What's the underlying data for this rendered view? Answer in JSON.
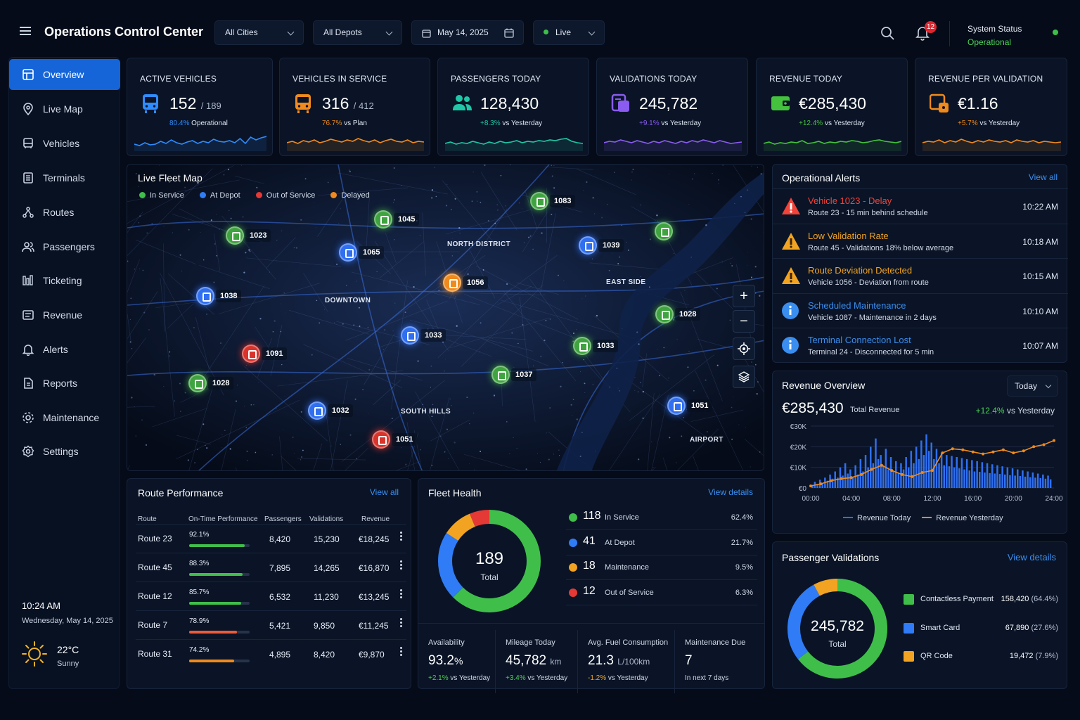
{
  "header": {
    "title": "Operations Control Center",
    "city_filter": "All Cities",
    "depot_filter": "All Depots",
    "date": "May 14, 2025",
    "mode": "Live",
    "notifications": "12",
    "status_label": "System Status",
    "status_value": "Operational"
  },
  "sidebar": {
    "items": [
      {
        "label": "Overview",
        "icon": "dashboard-icon"
      },
      {
        "label": "Live Map",
        "icon": "map-pin-icon"
      },
      {
        "label": "Vehicles",
        "icon": "bus-icon"
      },
      {
        "label": "Terminals",
        "icon": "terminal-icon"
      },
      {
        "label": "Routes",
        "icon": "routes-icon"
      },
      {
        "label": "Passengers",
        "icon": "users-icon"
      },
      {
        "label": "Ticketing",
        "icon": "ticket-icon"
      },
      {
        "label": "Revenue",
        "icon": "revenue-icon"
      },
      {
        "label": "Alerts",
        "icon": "bell-icon"
      },
      {
        "label": "Reports",
        "icon": "document-icon"
      },
      {
        "label": "Maintenance",
        "icon": "gear-icon"
      },
      {
        "label": "Settings",
        "icon": "settings-icon"
      }
    ],
    "time": "10:24 AM",
    "date": "Wednesday, May 14, 2025",
    "temp": "22°C",
    "weather": "Sunny"
  },
  "kpis": [
    {
      "label": "ACTIVE VEHICLES",
      "value": "152",
      "total": "/ 189",
      "delta": "80.4%",
      "delta_text": "Operational",
      "color": "#2f8cff"
    },
    {
      "label": "VEHICLES IN SERVICE",
      "value": "316",
      "total": "/ 412",
      "delta": "76.7%",
      "delta_text": "vs Plan",
      "color": "#f08a1c"
    },
    {
      "label": "PASSENGERS TODAY",
      "value": "128,430",
      "total": "",
      "delta": "+8.3%",
      "delta_text": "vs Yesterday",
      "color": "#1fc7a8"
    },
    {
      "label": "VALIDATIONS TODAY",
      "value": "245,782",
      "total": "",
      "delta": "+9.1%",
      "delta_text": "vs Yesterday",
      "color": "#8a5cf0"
    },
    {
      "label": "REVENUE TODAY",
      "value": "€285,430",
      "total": "",
      "delta": "+12.4%",
      "delta_text": "vs Yesterday",
      "color": "#44c23d"
    },
    {
      "label": "REVENUE PER VALIDATION",
      "value": "€1.16",
      "total": "",
      "delta": "+5.7%",
      "delta_text": "vs Yesterday",
      "color": "#f08a1c"
    }
  ],
  "map": {
    "title": "Live Fleet Map",
    "legend": [
      {
        "label": "In Service",
        "color": "#3fbf4a"
      },
      {
        "label": "At Depot",
        "color": "#2f7cf6"
      },
      {
        "label": "Out of Service",
        "color": "#e53935"
      },
      {
        "label": "Delayed",
        "color": "#f08a1c"
      }
    ],
    "districts": [
      "NORTH DISTRICT",
      "EAST SIDE",
      "DOWNTOWN",
      "SOUTH HILLS",
      "AIRPORT"
    ],
    "vehicles": [
      {
        "id": "1083",
        "status": "service"
      },
      {
        "id": "1045",
        "status": "service"
      },
      {
        "id": "1023",
        "status": "service"
      },
      {
        "id": "",
        "status": "service"
      },
      {
        "id": "1065",
        "status": "depot"
      },
      {
        "id": "1039",
        "status": "depot"
      },
      {
        "id": "1056",
        "status": "delayed"
      },
      {
        "id": "1038",
        "status": "depot"
      },
      {
        "id": "1028",
        "status": "service"
      },
      {
        "id": "1033",
        "status": "depot"
      },
      {
        "id": "1033",
        "status": "service"
      },
      {
        "id": "1091",
        "status": "out"
      },
      {
        "id": "1037",
        "status": "service"
      },
      {
        "id": "1028",
        "status": "service"
      },
      {
        "id": "1032",
        "status": "depot"
      },
      {
        "id": "1051",
        "status": "depot"
      },
      {
        "id": "1051",
        "status": "out"
      }
    ]
  },
  "alerts": {
    "title": "Operational Alerts",
    "view_all": "View all",
    "items": [
      {
        "title": "Vehicle 1023 - Delay",
        "desc": "Route 23 - 15 min behind schedule",
        "time": "10:22 AM",
        "severity": "critical",
        "color": "#f0433a",
        "icon": "alert-triangle-icon"
      },
      {
        "title": "Low Validation Rate",
        "desc": "Route 45 - Validations 18% below average",
        "time": "10:18 AM",
        "severity": "warning",
        "color": "#f2a322",
        "icon": "warning-triangle-icon"
      },
      {
        "title": "Route Deviation Detected",
        "desc": "Vehicle 1056 - Deviation from route",
        "time": "10:15 AM",
        "severity": "warning",
        "color": "#f2a322",
        "icon": "warning-triangle-icon"
      },
      {
        "title": "Scheduled Maintenance",
        "desc": "Vehicle 1087 - Maintenance in 2 days",
        "time": "10:10 AM",
        "severity": "info",
        "color": "#3a8ef0",
        "icon": "info-icon"
      },
      {
        "title": "Terminal Connection Lost",
        "desc": "Terminal 24 - Disconnected for 5 min",
        "time": "10:07 AM",
        "severity": "info",
        "color": "#3a8ef0",
        "icon": "info-icon"
      }
    ]
  },
  "revenue": {
    "title": "Revenue Overview",
    "period": "Today",
    "total": "€285,430",
    "total_label": "Total Revenue",
    "delta": "+12.4%",
    "delta_text": "vs Yesterday"
  },
  "chart_data": {
    "type": "bar",
    "x_labels": [
      "00:00",
      "04:00",
      "08:00",
      "12:00",
      "16:00",
      "20:00",
      "24:00"
    ],
    "y_labels": [
      "€30K",
      "€20K",
      "€10K",
      "€0"
    ],
    "ylim": [
      0,
      30000
    ],
    "xlim": [
      0,
      24
    ],
    "series": [
      {
        "name": "Revenue Today",
        "kind": "bar",
        "color": "#2f6ff0",
        "x": [
          0.25,
          0.5,
          0.75,
          1,
          1.25,
          1.5,
          1.75,
          2,
          2.25,
          2.5,
          2.75,
          3,
          3.25,
          3.5,
          3.75,
          4,
          4.25,
          4.5,
          4.75,
          5,
          5.25,
          5.5,
          5.75,
          6,
          6.25,
          6.5,
          6.75,
          7,
          7.25,
          7.5,
          7.75,
          8,
          8.25,
          8.5,
          8.75,
          9,
          9.25,
          9.5,
          9.75,
          10,
          10.25,
          10.5,
          10.75,
          11,
          11.25,
          11.5,
          11.75,
          12,
          12.25,
          12.5,
          12.75,
          13,
          13.25,
          13.5,
          13.75,
          14,
          14.25,
          14.5,
          14.75,
          15,
          15.25,
          15.5,
          15.75,
          16,
          16.25,
          16.5,
          16.75,
          17,
          17.25,
          17.5,
          17.75,
          18,
          18.25,
          18.5,
          18.75,
          19,
          19.25,
          19.5,
          19.75,
          20,
          20.25,
          20.5,
          20.75,
          21,
          21.25,
          21.5,
          21.75,
          22,
          22.25,
          22.5,
          22.75,
          23,
          23.25,
          23.5,
          23.75
        ],
        "y": [
          1500,
          3000,
          2000,
          4000,
          2500,
          5000,
          3500,
          6500,
          4500,
          8000,
          5000,
          10000,
          6000,
          12000,
          7000,
          9000,
          5500,
          11000,
          6500,
          14000,
          8000,
          16000,
          10000,
          20000,
          12000,
          24000,
          14000,
          16000,
          11000,
          19000,
          9000,
          15000,
          8000,
          13000,
          7500,
          12000,
          9000,
          15000,
          10000,
          18000,
          12000,
          20000,
          14000,
          23000,
          16000,
          26000,
          18000,
          22000,
          14000,
          19000,
          12000,
          17000,
          11000,
          16000,
          10500,
          15500,
          10000,
          15000,
          9500,
          14500,
          9000,
          14000,
          8500,
          13500,
          8000,
          13000,
          7800,
          12500,
          7500,
          12000,
          7200,
          11500,
          7000,
          11000,
          6800,
          10500,
          6500,
          10000,
          6200,
          9500,
          6000,
          9000,
          5800,
          8500,
          5500,
          8000,
          5200,
          7500,
          5000,
          7000,
          4800,
          6500,
          4500,
          6000,
          4200
        ]
      },
      {
        "name": "Revenue Yesterday",
        "kind": "line",
        "color": "#f08a1c",
        "x": [
          0,
          1,
          2,
          3,
          4,
          5,
          6,
          7,
          8,
          9,
          10,
          11,
          12,
          13,
          14,
          15,
          16,
          17,
          18,
          19,
          20,
          21,
          22,
          23,
          24
        ],
        "y": [
          1000,
          2000,
          3500,
          4500,
          5000,
          6500,
          9000,
          11000,
          8500,
          6500,
          5500,
          7500,
          8500,
          17000,
          19000,
          18500,
          17500,
          16500,
          17500,
          18500,
          17000,
          18000,
          20000,
          21000,
          23000
        ]
      }
    ]
  },
  "route_perf": {
    "title": "Route Performance",
    "view_all": "View all",
    "columns": [
      "Route",
      "On-Time Performance",
      "Passengers",
      "Validations",
      "Revenue"
    ],
    "rows": [
      {
        "route": "Route 23",
        "otp": "92.1%",
        "otp_value": 0.921,
        "color": "#3fbf4a",
        "passengers": "8,420",
        "validations": "15,230",
        "revenue": "€18,245"
      },
      {
        "route": "Route 45",
        "otp": "88.3%",
        "otp_value": 0.883,
        "color": "#3fbf4a",
        "passengers": "7,895",
        "validations": "14,265",
        "revenue": "€16,870"
      },
      {
        "route": "Route 12",
        "otp": "85.7%",
        "otp_value": 0.857,
        "color": "#3fbf4a",
        "passengers": "6,532",
        "validations": "11,230",
        "revenue": "€13,245"
      },
      {
        "route": "Route 7",
        "otp": "78.9%",
        "otp_value": 0.789,
        "color": "#ef5a3a",
        "passengers": "5,421",
        "validations": "9,850",
        "revenue": "€11,245"
      },
      {
        "route": "Route 31",
        "otp": "74.2%",
        "otp_value": 0.742,
        "color": "#f08a1c",
        "passengers": "4,895",
        "validations": "8,420",
        "revenue": "€9,870"
      }
    ]
  },
  "fleet": {
    "title": "Fleet Health",
    "view_details": "View details",
    "total": "189",
    "total_label": "Total",
    "segments": [
      {
        "count": "118",
        "label": "In Service",
        "pct": "62.4%",
        "value": 62.4,
        "color": "#3fbf4a"
      },
      {
        "count": "41",
        "label": "At Depot",
        "pct": "21.7%",
        "value": 21.7,
        "color": "#2f7cf6"
      },
      {
        "count": "18",
        "label": "Maintenance",
        "pct": "9.5%",
        "value": 9.5,
        "color": "#f2a322"
      },
      {
        "count": "12",
        "label": "Out of Service",
        "pct": "6.3%",
        "value": 6.3,
        "color": "#e53935"
      }
    ],
    "stats": [
      {
        "label": "Availability",
        "value": "93.2",
        "unit": "%",
        "delta": "+2.1%",
        "delta_text": "vs Yesterday"
      },
      {
        "label": "Mileage Today",
        "value": "45,782",
        "unit": "km",
        "delta": "+3.4%",
        "delta_text": "vs Yesterday"
      },
      {
        "label": "Avg. Fuel Consumption",
        "value": "21.3",
        "unit": "L/100km",
        "delta": "-1.2%",
        "delta_text": "vs Yesterday"
      },
      {
        "label": "Maintenance Due",
        "value": "7",
        "unit": "",
        "delta": "",
        "delta_text": "In next 7 days"
      }
    ]
  },
  "validations": {
    "title": "Passenger Validations",
    "view_details": "View details",
    "total": "245,782",
    "total_label": "Total",
    "segments": [
      {
        "label": "Contactless Payment",
        "count": "158,420",
        "pct": "(64.4%)",
        "value": 64.4,
        "color": "#3fbf4a"
      },
      {
        "label": "Smart Card",
        "count": "67,890",
        "pct": "(27.6%)",
        "value": 27.6,
        "color": "#2f7cf6"
      },
      {
        "label": "QR Code",
        "count": "19,472",
        "pct": "(7.9%)",
        "value": 7.9,
        "color": "#f2a322"
      }
    ]
  }
}
